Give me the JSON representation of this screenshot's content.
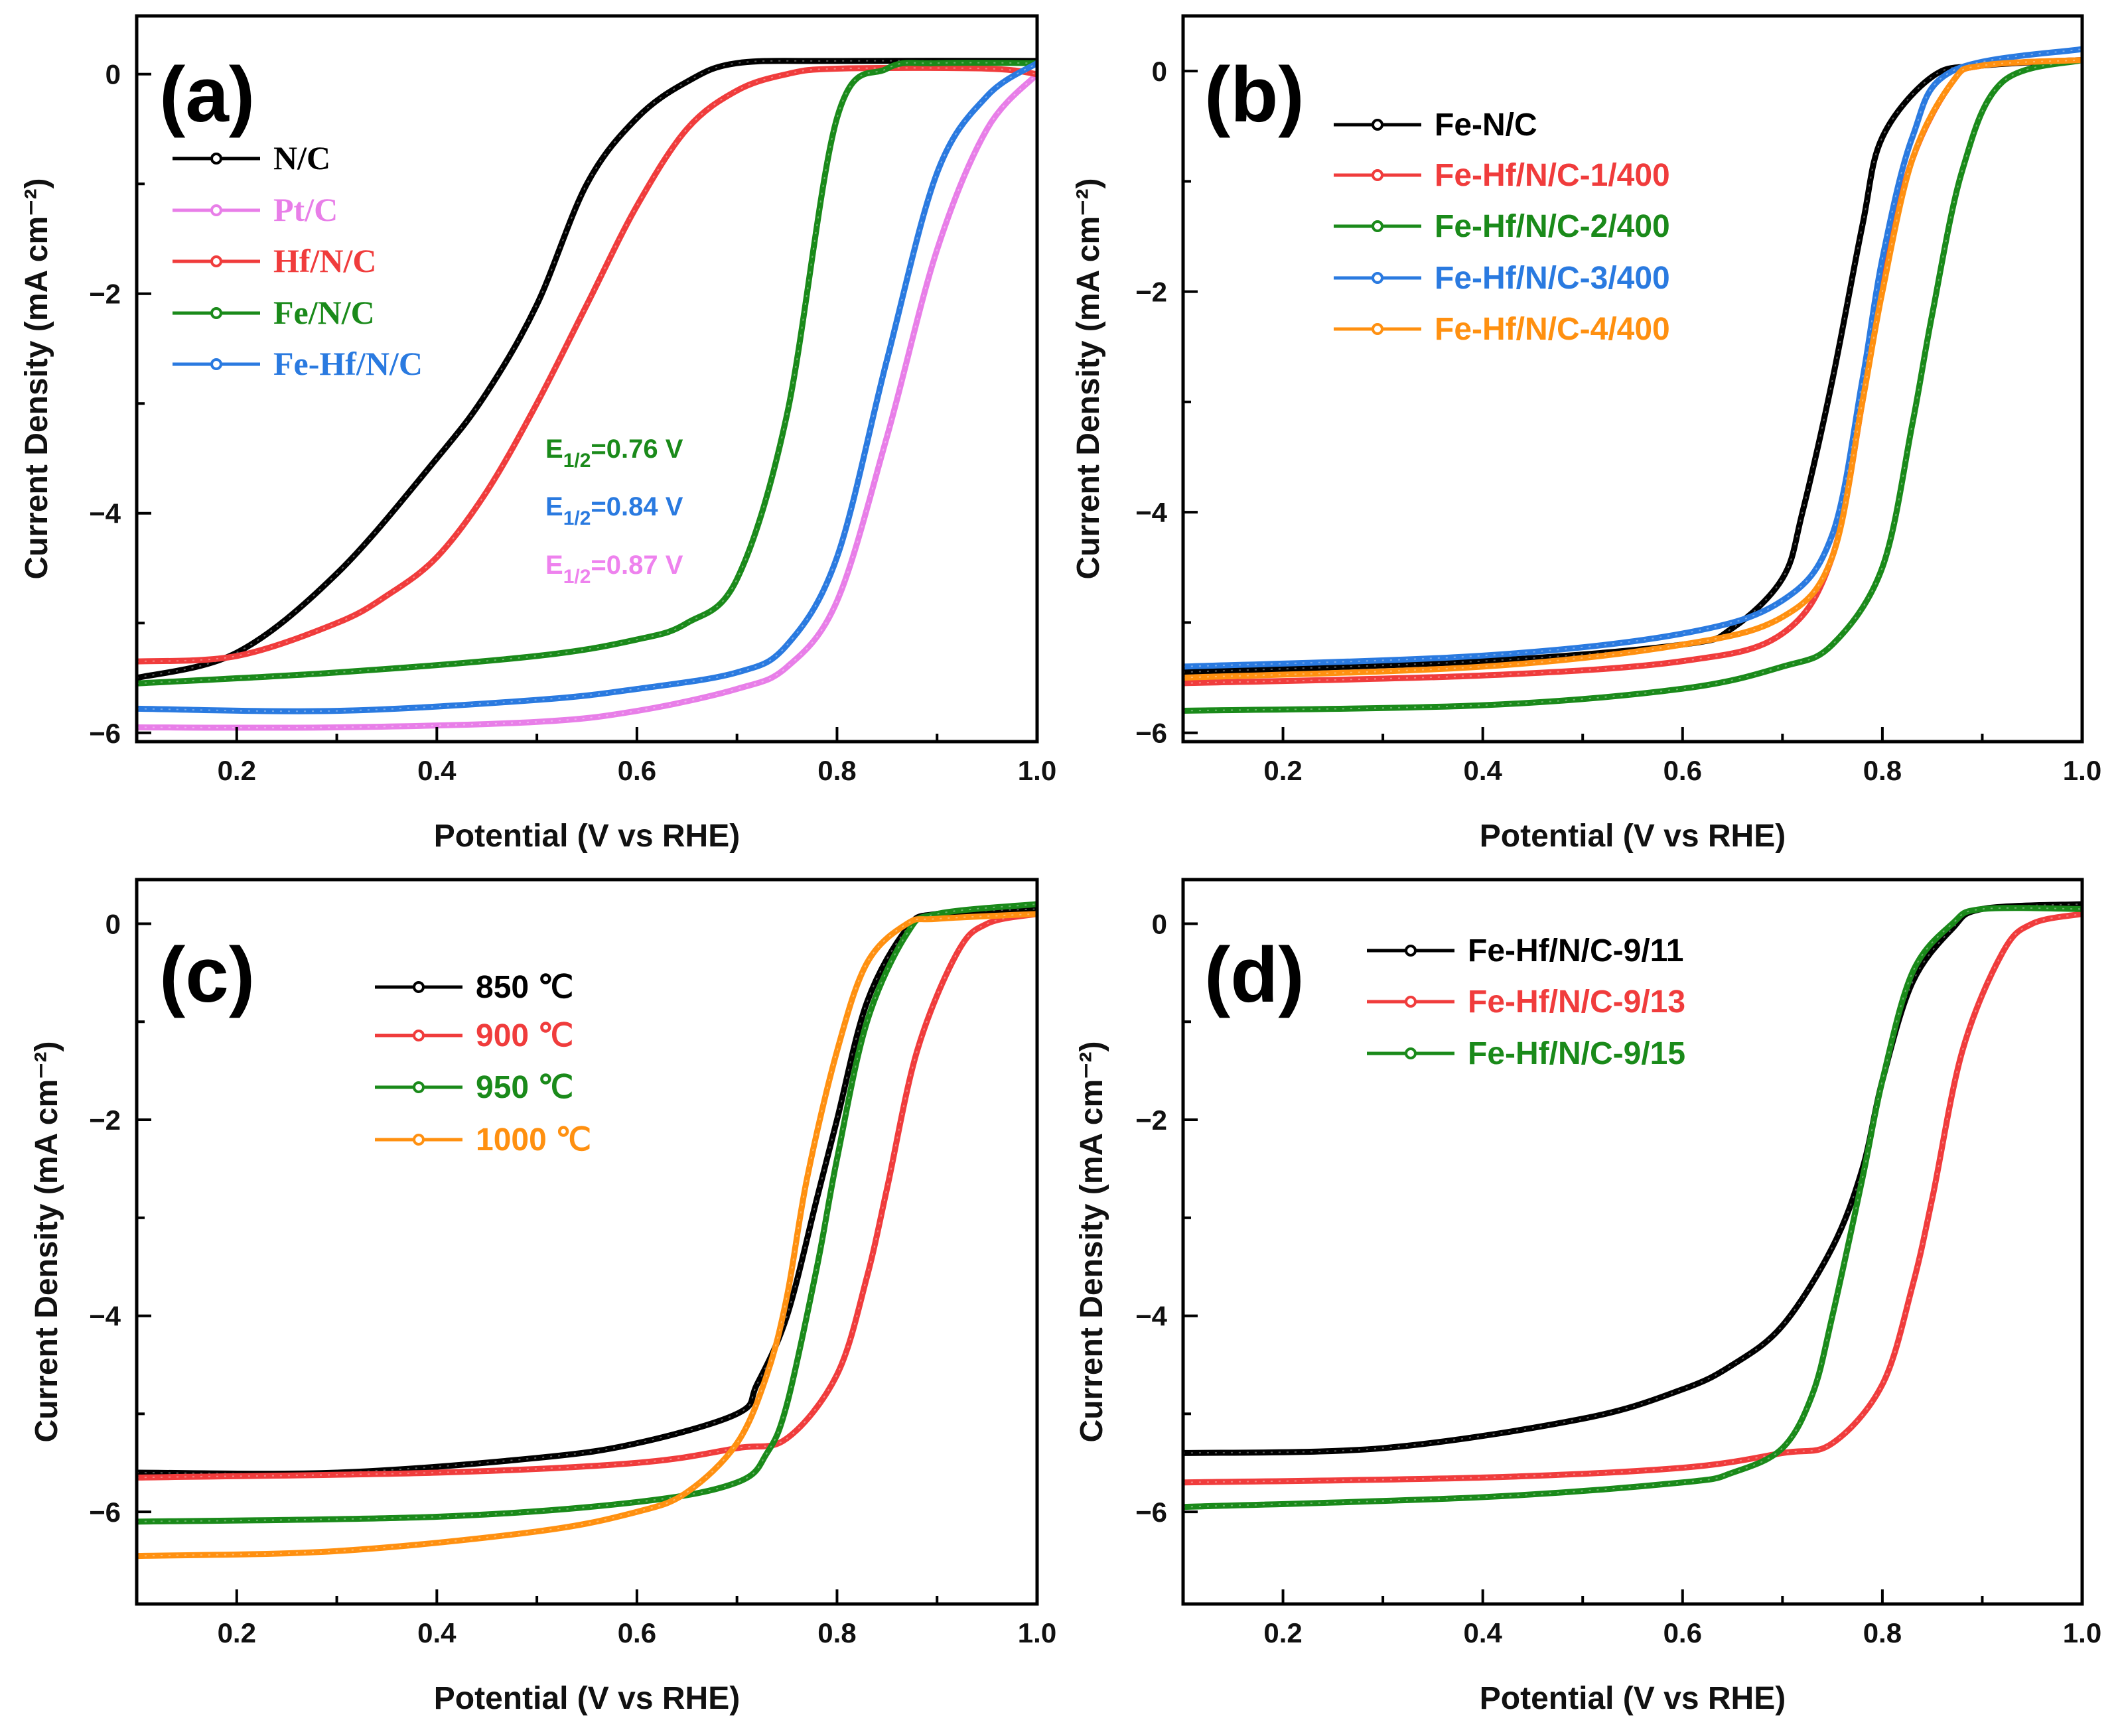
{
  "chart_data": [
    {
      "type": "line",
      "panel_label": "(a)",
      "xlabel": "Potential (V vs RHE)",
      "ylabel": "Current Density (mA cm⁻²)",
      "xlim": [
        0.1,
        1.0
      ],
      "ylim": [
        -6.08,
        0.53
      ],
      "xticks": [
        "0.2",
        "0.4",
        "0.6",
        "0.8",
        "1.0"
      ],
      "xtick_values": [
        0.2,
        0.4,
        0.6,
        0.8,
        1.0
      ],
      "yticks": [
        "0",
        "−2",
        "−4",
        "−6"
      ],
      "ytick_values": [
        0,
        -2,
        -4,
        -6
      ],
      "legend_placement": "upper-left",
      "legend_serif": true,
      "annotations": [
        {
          "prefix": "E",
          "sub": "1/2",
          "text": "=0.76 V",
          "color": "#1a8a1a"
        },
        {
          "prefix": "E",
          "sub": "1/2",
          "text": "=0.84 V",
          "color": "#2a7ae0"
        },
        {
          "prefix": "E",
          "sub": "1/2",
          "text": "=0.87 V",
          "color": "#ee82ee"
        }
      ],
      "series": [
        {
          "name": "N/C",
          "color": "#000000",
          "points": [
            [
              0.1,
              -5.5
            ],
            [
              0.2,
              -5.27
            ],
            [
              0.3,
              -4.55
            ],
            [
              0.4,
              -3.5
            ],
            [
              0.45,
              -2.9
            ],
            [
              0.5,
              -2.1
            ],
            [
              0.55,
              -1.0
            ],
            [
              0.6,
              -0.4
            ],
            [
              0.65,
              -0.07
            ],
            [
              0.7,
              0.1
            ],
            [
              0.8,
              0.12
            ],
            [
              1.0,
              0.12
            ]
          ]
        },
        {
          "name": "Pt/C",
          "color": "#e87ee8",
          "points": [
            [
              0.1,
              -5.95
            ],
            [
              0.3,
              -5.95
            ],
            [
              0.5,
              -5.9
            ],
            [
              0.6,
              -5.8
            ],
            [
              0.7,
              -5.6
            ],
            [
              0.75,
              -5.4
            ],
            [
              0.8,
              -4.8
            ],
            [
              0.85,
              -3.3
            ],
            [
              0.9,
              -1.6
            ],
            [
              0.95,
              -0.5
            ],
            [
              1.0,
              0.0
            ]
          ]
        },
        {
          "name": "Hf/N/C",
          "color": "#f03c3c",
          "points": [
            [
              0.1,
              -5.35
            ],
            [
              0.2,
              -5.3
            ],
            [
              0.3,
              -5.0
            ],
            [
              0.35,
              -4.75
            ],
            [
              0.4,
              -4.4
            ],
            [
              0.45,
              -3.8
            ],
            [
              0.5,
              -3.0
            ],
            [
              0.55,
              -2.1
            ],
            [
              0.6,
              -1.2
            ],
            [
              0.65,
              -0.5
            ],
            [
              0.7,
              -0.15
            ],
            [
              0.75,
              0.0
            ],
            [
              0.8,
              0.05
            ],
            [
              0.95,
              0.05
            ],
            [
              1.0,
              0.0
            ]
          ]
        },
        {
          "name": "Fe/N/C",
          "color": "#1a8a1a",
          "points": [
            [
              0.1,
              -5.55
            ],
            [
              0.3,
              -5.45
            ],
            [
              0.5,
              -5.3
            ],
            [
              0.6,
              -5.15
            ],
            [
              0.65,
              -5.0
            ],
            [
              0.7,
              -4.6
            ],
            [
              0.75,
              -3.1
            ],
            [
              0.8,
              -0.4
            ],
            [
              0.85,
              0.05
            ],
            [
              0.9,
              0.1
            ],
            [
              1.0,
              0.1
            ]
          ]
        },
        {
          "name": "Fe-Hf/N/C",
          "color": "#2a7ae0",
          "points": [
            [
              0.1,
              -5.78
            ],
            [
              0.3,
              -5.8
            ],
            [
              0.5,
              -5.7
            ],
            [
              0.6,
              -5.6
            ],
            [
              0.7,
              -5.45
            ],
            [
              0.75,
              -5.2
            ],
            [
              0.8,
              -4.4
            ],
            [
              0.85,
              -2.6
            ],
            [
              0.9,
              -0.9
            ],
            [
              0.95,
              -0.2
            ],
            [
              1.0,
              0.1
            ]
          ]
        }
      ]
    },
    {
      "type": "line",
      "panel_label": "(b)",
      "xlabel": "Potential (V vs RHE)",
      "ylabel": "Current Density (mA cm⁻²)",
      "xlim": [
        0.1,
        1.0
      ],
      "ylim": [
        -6.08,
        0.5
      ],
      "xticks": [
        "0.2",
        "0.4",
        "0.6",
        "0.8",
        "1.0"
      ],
      "xtick_values": [
        0.2,
        0.4,
        0.6,
        0.8,
        1.0
      ],
      "yticks": [
        "0",
        "−2",
        "−4",
        "−6"
      ],
      "ytick_values": [
        0,
        -2,
        -4,
        -6
      ],
      "legend_placement": "upper-left",
      "series": [
        {
          "name": "Fe-N/C",
          "color": "#000000",
          "points": [
            [
              0.1,
              -5.45
            ],
            [
              0.4,
              -5.35
            ],
            [
              0.6,
              -5.2
            ],
            [
              0.65,
              -5.05
            ],
            [
              0.7,
              -4.6
            ],
            [
              0.72,
              -4.0
            ],
            [
              0.75,
              -2.8
            ],
            [
              0.78,
              -1.4
            ],
            [
              0.8,
              -0.6
            ],
            [
              0.85,
              -0.05
            ],
            [
              0.9,
              0.05
            ],
            [
              1.0,
              0.1
            ]
          ]
        },
        {
          "name": "Fe-Hf/N/C-1/400",
          "color": "#f03c3c",
          "points": [
            [
              0.1,
              -5.55
            ],
            [
              0.4,
              -5.48
            ],
            [
              0.6,
              -5.35
            ],
            [
              0.7,
              -5.1
            ],
            [
              0.75,
              -4.4
            ],
            [
              0.78,
              -3.0
            ],
            [
              0.8,
              -1.9
            ],
            [
              0.83,
              -0.8
            ],
            [
              0.87,
              -0.1
            ],
            [
              0.9,
              0.05
            ],
            [
              1.0,
              0.1
            ]
          ]
        },
        {
          "name": "Fe-Hf/N/C-2/400",
          "color": "#1a8a1a",
          "points": [
            [
              0.1,
              -5.8
            ],
            [
              0.4,
              -5.75
            ],
            [
              0.6,
              -5.6
            ],
            [
              0.7,
              -5.4
            ],
            [
              0.75,
              -5.2
            ],
            [
              0.8,
              -4.5
            ],
            [
              0.83,
              -3.2
            ],
            [
              0.85,
              -2.2
            ],
            [
              0.88,
              -0.9
            ],
            [
              0.92,
              -0.1
            ],
            [
              1.0,
              0.1
            ]
          ]
        },
        {
          "name": "Fe-Hf/N/C-3/400",
          "color": "#2a7ae0",
          "points": [
            [
              0.1,
              -5.4
            ],
            [
              0.4,
              -5.3
            ],
            [
              0.6,
              -5.1
            ],
            [
              0.7,
              -4.8
            ],
            [
              0.75,
              -4.2
            ],
            [
              0.78,
              -2.8
            ],
            [
              0.8,
              -1.7
            ],
            [
              0.83,
              -0.6
            ],
            [
              0.87,
              0.0
            ],
            [
              1.0,
              0.2
            ]
          ]
        },
        {
          "name": "Fe-Hf/N/C-4/400",
          "color": "#ff9010",
          "points": [
            [
              0.1,
              -5.5
            ],
            [
              0.4,
              -5.4
            ],
            [
              0.6,
              -5.2
            ],
            [
              0.7,
              -4.95
            ],
            [
              0.75,
              -4.4
            ],
            [
              0.78,
              -3.0
            ],
            [
              0.8,
              -2.0
            ],
            [
              0.83,
              -0.8
            ],
            [
              0.87,
              -0.1
            ],
            [
              0.9,
              0.05
            ],
            [
              1.0,
              0.1
            ]
          ]
        }
      ]
    },
    {
      "type": "line",
      "panel_label": "(c)",
      "xlabel": "Potential (V vs RHE)",
      "ylabel": "Current Density (mA cm⁻²)",
      "xlim": [
        0.1,
        1.0
      ],
      "ylim": [
        -6.94,
        0.45
      ],
      "xticks": [
        "0.2",
        "0.4",
        "0.6",
        "0.8",
        "1.0"
      ],
      "xtick_values": [
        0.2,
        0.4,
        0.6,
        0.8,
        1.0
      ],
      "yticks": [
        "0",
        "−2",
        "−4",
        "−6"
      ],
      "ytick_values": [
        0,
        -2,
        -4,
        -6
      ],
      "legend_placement": "upper-center",
      "series": [
        {
          "name": "850 ℃",
          "color": "#000000",
          "points": [
            [
              0.1,
              -5.6
            ],
            [
              0.3,
              -5.6
            ],
            [
              0.5,
              -5.45
            ],
            [
              0.6,
              -5.3
            ],
            [
              0.7,
              -5.0
            ],
            [
              0.72,
              -4.7
            ],
            [
              0.75,
              -4.0
            ],
            [
              0.78,
              -2.8
            ],
            [
              0.8,
              -2.0
            ],
            [
              0.83,
              -0.8
            ],
            [
              0.87,
              -0.05
            ],
            [
              0.9,
              0.1
            ],
            [
              1.0,
              0.15
            ]
          ]
        },
        {
          "name": "900 ℃",
          "color": "#f03c3c",
          "points": [
            [
              0.1,
              -5.65
            ],
            [
              0.4,
              -5.6
            ],
            [
              0.6,
              -5.5
            ],
            [
              0.7,
              -5.35
            ],
            [
              0.75,
              -5.25
            ],
            [
              0.8,
              -4.6
            ],
            [
              0.83,
              -3.6
            ],
            [
              0.85,
              -2.7
            ],
            [
              0.88,
              -1.3
            ],
            [
              0.92,
              -0.3
            ],
            [
              0.95,
              0.0
            ],
            [
              1.0,
              0.1
            ]
          ]
        },
        {
          "name": "950 ℃",
          "color": "#1a8a1a",
          "points": [
            [
              0.1,
              -6.1
            ],
            [
              0.4,
              -6.05
            ],
            [
              0.6,
              -5.9
            ],
            [
              0.7,
              -5.7
            ],
            [
              0.73,
              -5.4
            ],
            [
              0.75,
              -4.9
            ],
            [
              0.78,
              -3.5
            ],
            [
              0.8,
              -2.4
            ],
            [
              0.83,
              -1.0
            ],
            [
              0.87,
              -0.1
            ],
            [
              0.9,
              0.1
            ],
            [
              1.0,
              0.2
            ]
          ]
        },
        {
          "name": "1000 ℃",
          "color": "#ff9010",
          "points": [
            [
              0.1,
              -6.45
            ],
            [
              0.3,
              -6.4
            ],
            [
              0.5,
              -6.2
            ],
            [
              0.6,
              -6.0
            ],
            [
              0.65,
              -5.8
            ],
            [
              0.7,
              -5.3
            ],
            [
              0.73,
              -4.6
            ],
            [
              0.75,
              -3.8
            ],
            [
              0.77,
              -2.6
            ],
            [
              0.8,
              -1.3
            ],
            [
              0.83,
              -0.4
            ],
            [
              0.87,
              0.0
            ],
            [
              0.9,
              0.05
            ],
            [
              1.0,
              0.1
            ]
          ]
        }
      ]
    },
    {
      "type": "line",
      "panel_label": "(d)",
      "xlabel": "Potential (V vs RHE)",
      "ylabel": "Current Density (mA cm⁻²)",
      "xlim": [
        0.1,
        1.0
      ],
      "ylim": [
        -6.94,
        0.45
      ],
      "xticks": [
        "0.2",
        "0.4",
        "0.6",
        "0.8",
        "1.0"
      ],
      "xtick_values": [
        0.2,
        0.4,
        0.6,
        0.8,
        1.0
      ],
      "yticks": [
        "0",
        "−2",
        "−4",
        "−6"
      ],
      "ytick_values": [
        0,
        -2,
        -4,
        -6
      ],
      "legend_placement": "upper-left",
      "series": [
        {
          "name": "Fe-Hf/N/C-9/11",
          "color": "#000000",
          "points": [
            [
              0.1,
              -5.4
            ],
            [
              0.3,
              -5.35
            ],
            [
              0.5,
              -5.05
            ],
            [
              0.6,
              -4.75
            ],
            [
              0.65,
              -4.5
            ],
            [
              0.7,
              -4.1
            ],
            [
              0.75,
              -3.3
            ],
            [
              0.78,
              -2.5
            ],
            [
              0.8,
              -1.6
            ],
            [
              0.83,
              -0.6
            ],
            [
              0.87,
              -0.05
            ],
            [
              0.9,
              0.15
            ],
            [
              1.0,
              0.2
            ]
          ]
        },
        {
          "name": "Fe-Hf/N/C-9/13",
          "color": "#f03c3c",
          "points": [
            [
              0.1,
              -5.7
            ],
            [
              0.4,
              -5.65
            ],
            [
              0.6,
              -5.55
            ],
            [
              0.7,
              -5.4
            ],
            [
              0.75,
              -5.3
            ],
            [
              0.8,
              -4.7
            ],
            [
              0.83,
              -3.7
            ],
            [
              0.85,
              -2.8
            ],
            [
              0.88,
              -1.3
            ],
            [
              0.92,
              -0.3
            ],
            [
              0.95,
              0.0
            ],
            [
              1.0,
              0.1
            ]
          ]
        },
        {
          "name": "Fe-Hf/N/C-9/15",
          "color": "#1a8a1a",
          "points": [
            [
              0.1,
              -5.95
            ],
            [
              0.4,
              -5.85
            ],
            [
              0.6,
              -5.7
            ],
            [
              0.65,
              -5.6
            ],
            [
              0.7,
              -5.35
            ],
            [
              0.73,
              -4.8
            ],
            [
              0.75,
              -4.0
            ],
            [
              0.78,
              -2.6
            ],
            [
              0.8,
              -1.6
            ],
            [
              0.83,
              -0.5
            ],
            [
              0.87,
              0.0
            ],
            [
              0.9,
              0.15
            ],
            [
              1.0,
              0.15
            ]
          ]
        }
      ]
    }
  ]
}
